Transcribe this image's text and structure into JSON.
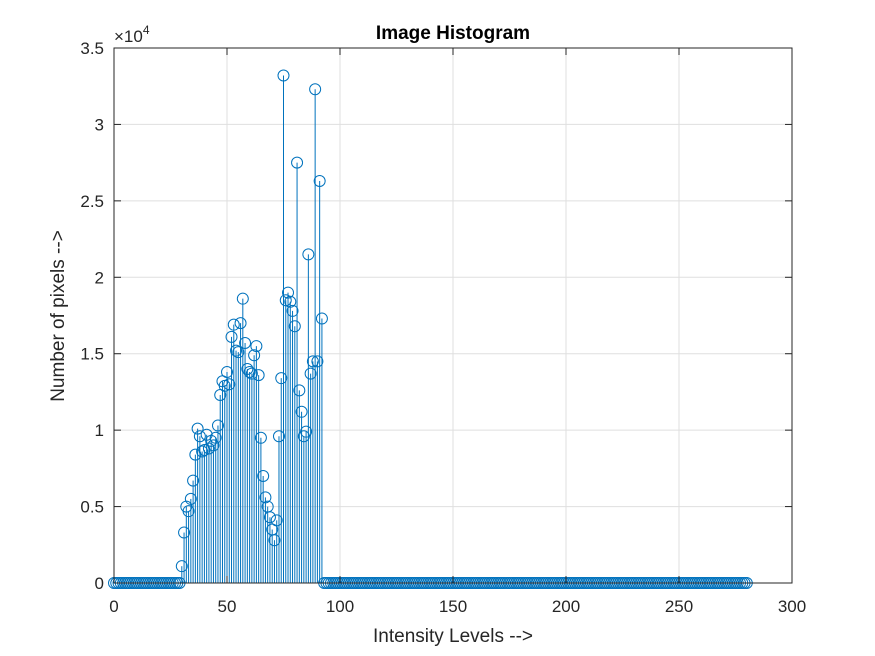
{
  "chart_data": {
    "type": "stem",
    "title": "Image Histogram",
    "xlabel": "Intensity Levels -->",
    "ylabel": "Number of pixels  -->",
    "xlim": [
      0,
      300
    ],
    "ylim": [
      0,
      35000
    ],
    "xticks": [
      0,
      50,
      100,
      150,
      200,
      250,
      300
    ],
    "yticks": [
      0,
      5000,
      10000,
      15000,
      20000,
      25000,
      30000,
      35000
    ],
    "ytick_labels": [
      "0",
      "0.5",
      "1",
      "1.5",
      "2",
      "2.5",
      "3",
      "3.5"
    ],
    "y_exponent_base": "×10",
    "y_exponent_power": "4",
    "grid": true,
    "color": "#0072BD",
    "x_start": 0,
    "values": [
      0,
      0,
      0,
      0,
      0,
      0,
      0,
      0,
      0,
      0,
      0,
      0,
      0,
      0,
      0,
      0,
      0,
      0,
      0,
      0,
      0,
      0,
      0,
      0,
      0,
      0,
      0,
      0,
      0,
      0,
      1100,
      3300,
      5000,
      4700,
      5500,
      6700,
      8400,
      10100,
      9600,
      8600,
      8700,
      9700,
      8800,
      9300,
      9000,
      9500,
      10300,
      12300,
      13200,
      12900,
      13800,
      13000,
      16100,
      16900,
      15200,
      15100,
      17000,
      18600,
      15700,
      14000,
      13800,
      13700,
      14900,
      15500,
      13600,
      9500,
      7000,
      5600,
      5000,
      4300,
      3500,
      2800,
      4100,
      9600,
      13400,
      33200,
      18500,
      19000,
      18400,
      17800,
      16800,
      27500,
      12600,
      11200,
      9600,
      9900,
      21500,
      13700,
      14500,
      32300,
      14500,
      26300,
      17300,
      0,
      0,
      0,
      0,
      0,
      0,
      0,
      0,
      0,
      0,
      0,
      0,
      0,
      0,
      0,
      0,
      0,
      0,
      0,
      0,
      0,
      0,
      0,
      0,
      0,
      0,
      0,
      0,
      0,
      0,
      0,
      0,
      0,
      0,
      0,
      0,
      0,
      0,
      0,
      0,
      0,
      0,
      0,
      0,
      0,
      0,
      0,
      0,
      0,
      0,
      0,
      0,
      0,
      0,
      0,
      0,
      0,
      0,
      0,
      0,
      0,
      0,
      0,
      0,
      0,
      0,
      0,
      0,
      0,
      0,
      0,
      0,
      0,
      0,
      0,
      0,
      0,
      0,
      0,
      0,
      0,
      0,
      0,
      0,
      0,
      0,
      0,
      0,
      0,
      0,
      0,
      0,
      0,
      0,
      0,
      0,
      0,
      0,
      0,
      0,
      0,
      0,
      0,
      0,
      0,
      0,
      0,
      0,
      0,
      0,
      0,
      0,
      0,
      0,
      0,
      0,
      0,
      0,
      0,
      0,
      0,
      0,
      0,
      0,
      0,
      0,
      0,
      0,
      0,
      0,
      0,
      0,
      0,
      0,
      0,
      0,
      0,
      0,
      0,
      0,
      0,
      0,
      0,
      0,
      0,
      0,
      0,
      0,
      0,
      0,
      0,
      0,
      0,
      0,
      0,
      0,
      0,
      0,
      0,
      0,
      0,
      0,
      0,
      0,
      0,
      0,
      0,
      0,
      0,
      0,
      0,
      0,
      0,
      0,
      0,
      0,
      0,
      0,
      0,
      0,
      0,
      0,
      0,
      0,
      0,
      0,
      0,
      0
    ]
  }
}
